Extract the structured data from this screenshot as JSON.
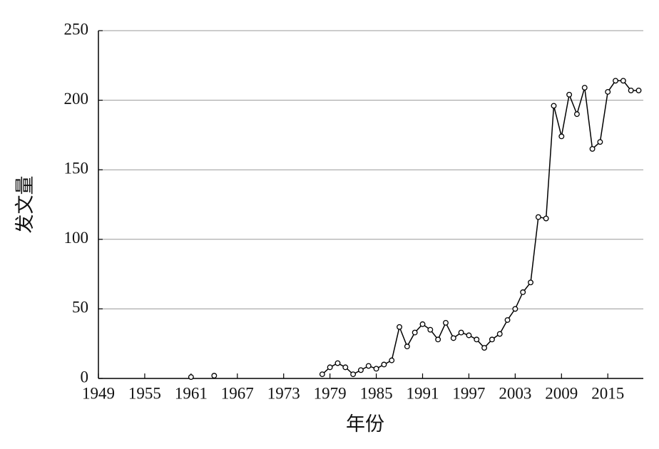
{
  "chart_data": {
    "type": "line",
    "x_label": "年份",
    "y_label": "发文量",
    "x": [
      1961,
      1962,
      1963,
      1964,
      1965,
      1966,
      1967,
      1968,
      1969,
      1970,
      1971,
      1972,
      1973,
      1974,
      1975,
      1976,
      1977,
      1978,
      1979,
      1980,
      1981,
      1982,
      1983,
      1984,
      1985,
      1986,
      1987,
      1988,
      1989,
      1990,
      1991,
      1992,
      1993,
      1994,
      1995,
      1996,
      1997,
      1998,
      1999,
      2000,
      2001,
      2002,
      2003,
      2004,
      2005,
      2006,
      2007,
      2008,
      2009,
      2010,
      2011,
      2012,
      2013,
      2014,
      2015,
      2016,
      2017,
      2018,
      2019
    ],
    "values": [
      1,
      null,
      null,
      2,
      null,
      null,
      null,
      null,
      null,
      null,
      null,
      null,
      null,
      null,
      null,
      null,
      null,
      3,
      8,
      11,
      8,
      3,
      6,
      9,
      7,
      10,
      13,
      37,
      23,
      33,
      39,
      35,
      28,
      40,
      29,
      33,
      31,
      28,
      22,
      28,
      32,
      42,
      50,
      62,
      69,
      116,
      115,
      196,
      174,
      204,
      190,
      209,
      165,
      170,
      206,
      214,
      214,
      207,
      207
    ],
    "color": "#000000",
    "xlim": [
      1949,
      2019.6
    ],
    "xticks": [
      1949,
      1955,
      1961,
      1967,
      1973,
      1979,
      1985,
      1991,
      1997,
      2003,
      2009,
      2015
    ],
    "ylim": [
      0,
      250
    ],
    "yticks": [
      0,
      50,
      100,
      150,
      200,
      250
    ],
    "grid": true
  }
}
